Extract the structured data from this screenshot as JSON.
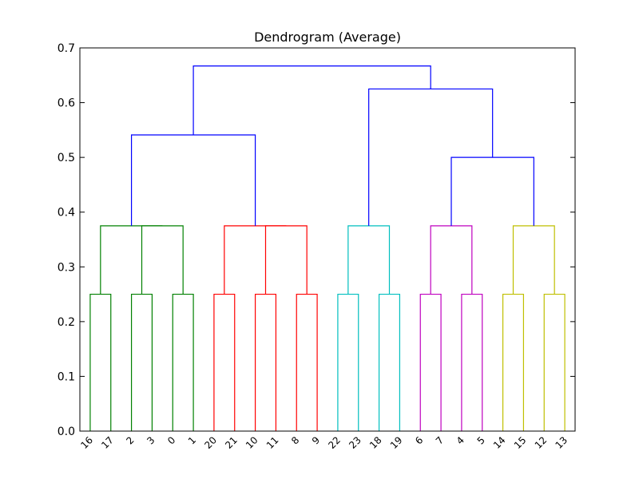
{
  "chart_data": {
    "type": "dendrogram",
    "title": "Dendrogram (Average)",
    "xlabel": "",
    "ylabel": "",
    "ylim": [
      0,
      0.7
    ],
    "yticks": [
      "0.0",
      "0.1",
      "0.2",
      "0.3",
      "0.4",
      "0.5",
      "0.6",
      "0.7"
    ],
    "leaves": [
      "16",
      "17",
      "2",
      "3",
      "0",
      "1",
      "20",
      "21",
      "10",
      "11",
      "8",
      "9",
      "22",
      "23",
      "18",
      "19",
      "6",
      "7",
      "4",
      "5",
      "14",
      "15",
      "12",
      "13"
    ],
    "colors": {
      "green": "#008000",
      "red": "#ff0000",
      "cyan": "#00bfbf",
      "magenta": "#bf00bf",
      "yellow": "#bfbf00",
      "blue": "#0000ff"
    },
    "links": [
      {
        "left": "leaf:0",
        "right": "leaf:1",
        "height": 0.25,
        "color": "green"
      },
      {
        "left": "leaf:2",
        "right": "leaf:3",
        "height": 0.25,
        "color": "green"
      },
      {
        "left": "leaf:4",
        "right": "leaf:5",
        "height": 0.25,
        "color": "green"
      },
      {
        "left": "leaf:6",
        "right": "leaf:7",
        "height": 0.25,
        "color": "red"
      },
      {
        "left": "leaf:8",
        "right": "leaf:9",
        "height": 0.25,
        "color": "red"
      },
      {
        "left": "leaf:10",
        "right": "leaf:11",
        "height": 0.25,
        "color": "red"
      },
      {
        "left": "leaf:12",
        "right": "leaf:13",
        "height": 0.25,
        "color": "cyan"
      },
      {
        "left": "leaf:14",
        "right": "leaf:15",
        "height": 0.25,
        "color": "cyan"
      },
      {
        "left": "leaf:16",
        "right": "leaf:17",
        "height": 0.25,
        "color": "magenta"
      },
      {
        "left": "leaf:18",
        "right": "leaf:19",
        "height": 0.25,
        "color": "magenta"
      },
      {
        "left": "leaf:20",
        "right": "leaf:21",
        "height": 0.25,
        "color": "yellow"
      },
      {
        "left": "leaf:22",
        "right": "leaf:23",
        "height": 0.25,
        "color": "yellow"
      },
      {
        "left": "link:1",
        "right": "link:2",
        "height": 0.375,
        "color": "green"
      },
      {
        "left": "link:0",
        "right": "link:12",
        "height": 0.375,
        "color": "green"
      },
      {
        "left": "link:4",
        "right": "link:5",
        "height": 0.375,
        "color": "red"
      },
      {
        "left": "link:3",
        "right": "link:14",
        "height": 0.375,
        "color": "red"
      },
      {
        "left": "link:6",
        "right": "link:7",
        "height": 0.375,
        "color": "cyan"
      },
      {
        "left": "link:8",
        "right": "link:9",
        "height": 0.375,
        "color": "magenta"
      },
      {
        "left": "link:10",
        "right": "link:11",
        "height": 0.375,
        "color": "yellow"
      },
      {
        "left": "link:13",
        "right": "link:15",
        "height": 0.541,
        "color": "blue"
      },
      {
        "left": "link:17",
        "right": "link:18",
        "height": 0.5,
        "color": "blue"
      },
      {
        "left": "link:16",
        "right": "link:20",
        "height": 0.625,
        "color": "blue"
      },
      {
        "left": "link:19",
        "right": "link:21",
        "height": 0.667,
        "color": "blue"
      }
    ]
  }
}
